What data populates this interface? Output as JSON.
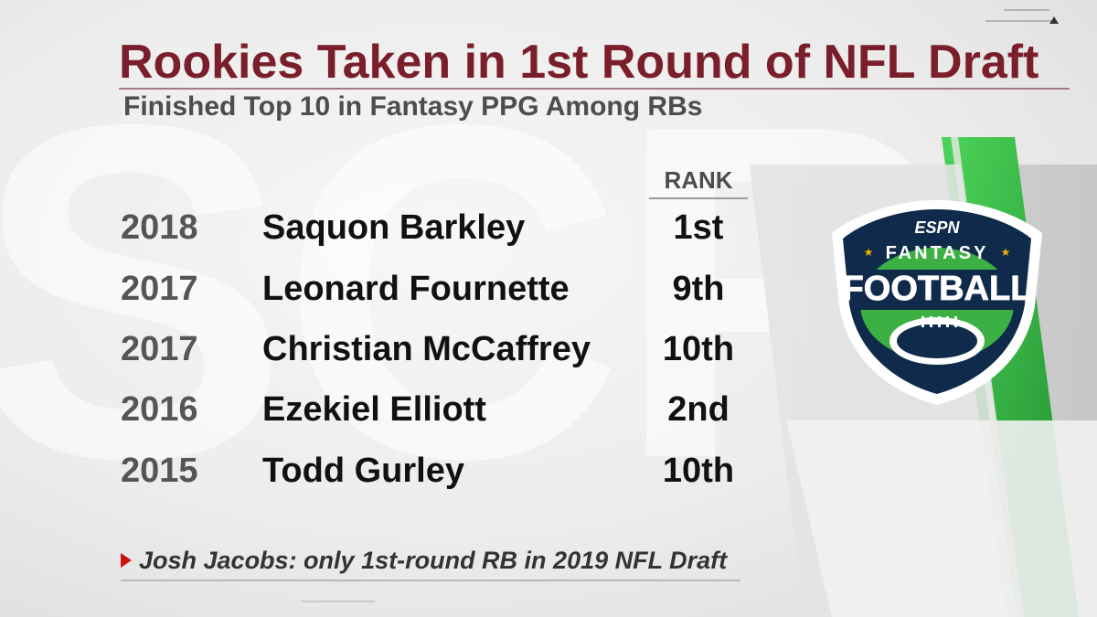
{
  "title": "Rookies Taken in 1st Round of NFL Draft",
  "subtitle": "Finished Top 10 in Fantasy PPG Among RBs",
  "table": {
    "rank_header": "RANK",
    "rows": [
      {
        "year": "2018",
        "player": "Saquon Barkley",
        "rank": "1st"
      },
      {
        "year": "2017",
        "player": "Leonard Fournette",
        "rank": "9th"
      },
      {
        "year": "2017",
        "player": "Christian McCaffrey",
        "rank": "10th"
      },
      {
        "year": "2016",
        "player": "Ezekiel Elliott",
        "rank": "2nd"
      },
      {
        "year": "2015",
        "player": "Todd Gurley",
        "rank": "10th"
      }
    ]
  },
  "footnote": "Josh Jacobs: only 1st-round RB in 2019 NFL Draft",
  "logo": {
    "brand": "ESPN",
    "line1": "FANTASY",
    "line2": "FOOTBALL",
    "icon": "football-icon"
  },
  "colors": {
    "title": "#7a1f2a",
    "accent_green": "#3cb043",
    "logo_navy": "#0f2a4a",
    "footnote_marker": "#cc1010"
  }
}
